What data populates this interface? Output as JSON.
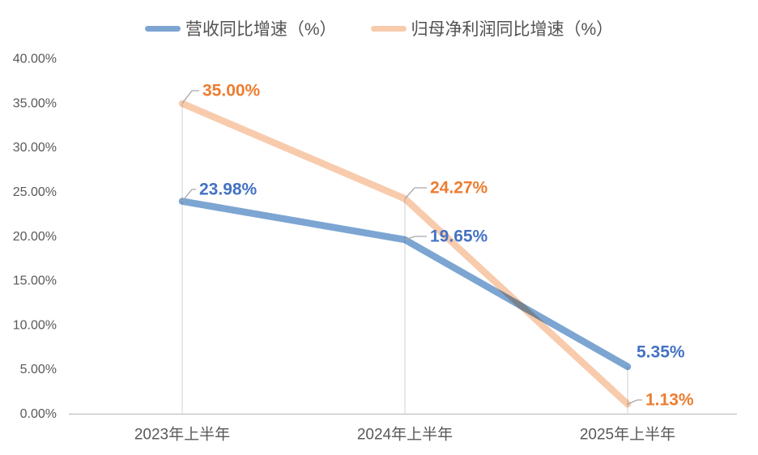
{
  "chart_data": {
    "type": "line",
    "title": "",
    "categories": [
      "2023年上半年",
      "2024年上半年",
      "2025年上半年"
    ],
    "series": [
      {
        "id": "revenue-yoy-growth",
        "name": "营收同比增速（%）",
        "color": "#7CA5D2",
        "label_color": "#4472C4",
        "values": [
          23.98,
          19.65,
          5.35
        ],
        "point_labels": [
          "23.98%",
          "19.65%",
          "5.35%"
        ]
      },
      {
        "id": "net-profit-yoy-growth",
        "name": "归母净利润同比增速（%）",
        "color": "#F8CBAD",
        "label_color": "#ED7D31",
        "values": [
          35.0,
          24.27,
          1.13
        ],
        "point_labels": [
          "35.00%",
          "24.27%",
          "1.13%"
        ]
      }
    ],
    "y_axis": {
      "min": 0,
      "max": 40,
      "step": 5,
      "tick_labels": [
        "0.00%",
        "5.00%",
        "10.00%",
        "15.00%",
        "20.00%",
        "25.00%",
        "30.00%",
        "35.00%",
        "40.00%"
      ]
    },
    "x_axis": {
      "tick_labels": [
        "2023年上半年",
        "2024年上半年",
        "2025年上半年"
      ]
    },
    "legend_position": "top",
    "grid": "vertical-drop-lines",
    "colors": {
      "background": "#FFFFFF",
      "axis_line": "#BFBFBF",
      "drop_line": "#D9D9D9",
      "axis_text": "#595959",
      "legend_text": "#525252",
      "leader_line": "#A6A6A6"
    }
  }
}
